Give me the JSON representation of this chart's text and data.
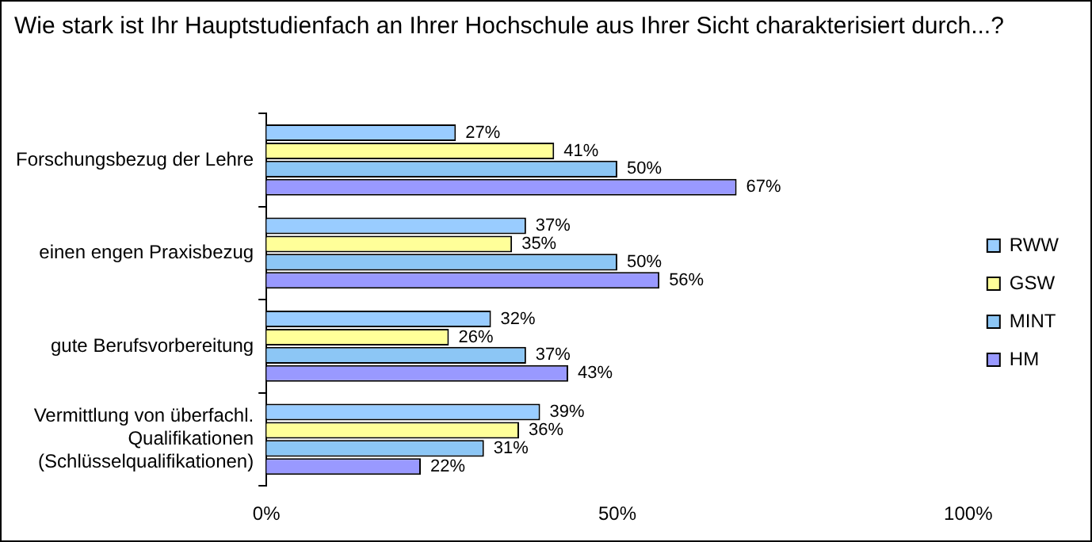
{
  "chart_data": {
    "type": "bar",
    "orientation": "horizontal",
    "title": "Wie stark ist Ihr Hauptstudienfach an Ihrer Hochschule aus Ihrer Sicht charakterisiert durch...?",
    "categories": [
      "Forschungsbezug der Lehre",
      "einen engen Praxisbezug",
      "gute Berufsvorbereitung",
      "Vermittlung von überfachl. Qualifikationen (Schlüsselqualifikationen)"
    ],
    "series": [
      {
        "name": "RWW",
        "color": "#99ccff",
        "values": [
          27,
          37,
          32,
          39
        ],
        "value_labels": [
          "27%",
          "37%",
          "32%",
          "39%"
        ]
      },
      {
        "name": "GSW",
        "color": "#ffff99",
        "values": [
          41,
          35,
          26,
          36
        ],
        "value_labels": [
          "41%",
          "35%",
          "26%",
          "36%"
        ]
      },
      {
        "name": "MINT",
        "color": "#8cc6f5",
        "values": [
          50,
          50,
          37,
          31
        ],
        "value_labels": [
          "50%",
          "50%",
          "37%",
          "31%"
        ]
      },
      {
        "name": "HM",
        "color": "#9999ff",
        "values": [
          67,
          56,
          43,
          22
        ],
        "value_labels": [
          "67%",
          "56%",
          "43%",
          "22%"
        ]
      }
    ],
    "xlim": [
      0,
      100
    ],
    "xticks": [
      {
        "value": 0,
        "label": "0%"
      },
      {
        "value": 50,
        "label": "50%"
      },
      {
        "value": 100,
        "label": "100%"
      }
    ],
    "grid": false,
    "legend": "right"
  }
}
